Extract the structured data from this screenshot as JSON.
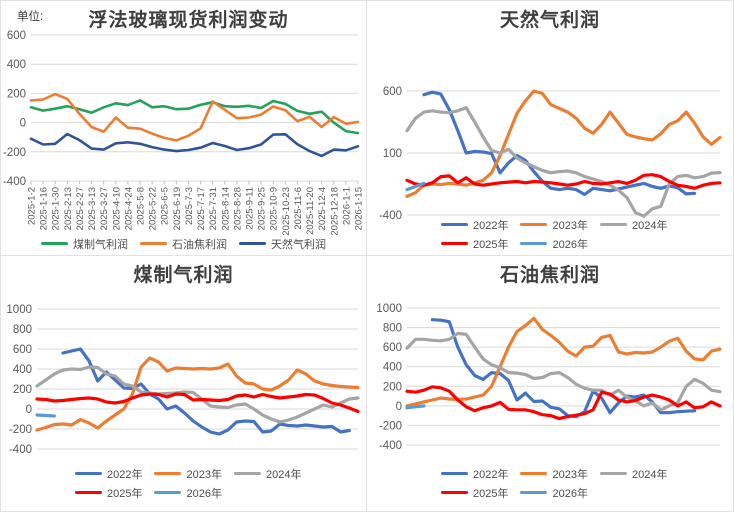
{
  "chart_data": [
    {
      "type": "line",
      "title": "浮法玻璃现货利润变动",
      "unit_label": "单位:",
      "legend_position": "bottom",
      "grid": "horizontal",
      "ylim": [
        -400,
        600
      ],
      "yticks": [
        600,
        400,
        200,
        0,
        -200,
        -400
      ],
      "categories": [
        "2025-1-2",
        "2025-1-16",
        "2025-1-30",
        "2025-2-13",
        "2025-2-27",
        "2025-3-13",
        "2025-3-27",
        "2025-4-10",
        "2025-4-24",
        "2025-5-8",
        "2025-5-22",
        "2025-6-5",
        "2025-6-19",
        "2025-7-3",
        "2025-7-17",
        "2025-7-31",
        "2025-8-14",
        "2025-8-28",
        "2025-9-11",
        "2025-9-25",
        "2025-10-9",
        "2025-10-23",
        "2025-11-6",
        "2025-11-20",
        "2025-12-4",
        "2025-12-18",
        "2026-1-1",
        "2026-1-15"
      ],
      "series": [
        {
          "name": "煤制气利润",
          "color": "#23A359",
          "values": [
            105,
            82,
            95,
            112,
            92,
            68,
            105,
            132,
            120,
            152,
            105,
            112,
            92,
            95,
            122,
            140,
            112,
            108,
            115,
            100,
            148,
            128,
            80,
            60,
            75,
            0,
            -58,
            -72
          ]
        },
        {
          "name": "石油焦利润",
          "color": "#ED7D31",
          "values": [
            152,
            158,
            195,
            162,
            60,
            -30,
            -62,
            35,
            -35,
            -42,
            -75,
            -105,
            -122,
            -90,
            -40,
            145,
            88,
            30,
            35,
            55,
            110,
            85,
            10,
            40,
            -30,
            38,
            -8,
            5
          ]
        },
        {
          "name": "天然气利润",
          "color": "#2F5597",
          "values": [
            -110,
            -150,
            -145,
            -78,
            -120,
            -178,
            -185,
            -142,
            -135,
            -145,
            -168,
            -185,
            -195,
            -188,
            -172,
            -140,
            -160,
            -188,
            -175,
            -150,
            -82,
            -80,
            -148,
            -195,
            -228,
            -185,
            -190,
            -162
          ]
        }
      ]
    },
    {
      "type": "line",
      "title": "天然气利润",
      "legend_position": "bottom",
      "grid": "horizontal",
      "ylim": [
        -400,
        1100
      ],
      "yticks": [
        600,
        100,
        -400
      ],
      "series": [
        {
          "name": "2022年",
          "color": "#4472C4",
          "values": [
            null,
            null,
            570,
            590,
            575,
            450,
            280,
            100,
            112,
            108,
            95,
            -60,
            20,
            80,
            40,
            -50,
            -130,
            -185,
            -195,
            -185,
            -195,
            -235,
            -185,
            -195,
            -205,
            -190,
            -175,
            -160,
            -145,
            -170,
            -185,
            -165,
            -180,
            -230,
            -225,
            null,
            null,
            null
          ]
        },
        {
          "name": "2023年",
          "color": "#ED7D31",
          "values": [
            -250,
            -220,
            -160,
            -150,
            -155,
            -145,
            -150,
            -160,
            -140,
            -120,
            -60,
            80,
            250,
            420,
            520,
            600,
            580,
            490,
            460,
            430,
            380,
            300,
            260,
            330,
            430,
            340,
            250,
            230,
            215,
            205,
            255,
            330,
            360,
            430,
            340,
            230,
            170,
            225
          ]
        },
        {
          "name": "2024年",
          "color": "#A5A5A5",
          "values": [
            280,
            380,
            430,
            440,
            430,
            425,
            440,
            465,
            350,
            230,
            120,
            100,
            130,
            60,
            20,
            -10,
            -40,
            -60,
            -50,
            -45,
            -60,
            -90,
            -110,
            -130,
            -160,
            -200,
            -260,
            -380,
            -410,
            -350,
            -330,
            -150,
            -90,
            -80,
            -100,
            -90,
            -62,
            -58
          ]
        },
        {
          "name": "2025年",
          "color": "#FF0000",
          "values": [
            -120,
            -150,
            -160,
            -140,
            -90,
            -85,
            -140,
            -100,
            -150,
            -160,
            -150,
            -140,
            -135,
            -130,
            -140,
            -130,
            -135,
            -140,
            -150,
            -160,
            -150,
            -130,
            -145,
            -150,
            -140,
            -130,
            -145,
            -120,
            -80,
            -75,
            -90,
            -130,
            -160,
            -170,
            -185,
            -160,
            -145,
            -140
          ]
        },
        {
          "name": "2026年",
          "color": "#5B9BD5",
          "values": [
            -195,
            -170,
            -145,
            null,
            null,
            null,
            null,
            null,
            null,
            null,
            null,
            null,
            null,
            null,
            null,
            null,
            null,
            null,
            null,
            null,
            null,
            null,
            null,
            null,
            null,
            null,
            null,
            null,
            null,
            null,
            null,
            null,
            null,
            null,
            null,
            null,
            null,
            null
          ]
        }
      ]
    },
    {
      "type": "line",
      "title": "煤制气利润",
      "legend_position": "bottom",
      "grid": "horizontal",
      "ylim": [
        -400,
        1000
      ],
      "yticks": [
        1000,
        800,
        600,
        400,
        200,
        0,
        -200,
        -400
      ],
      "series": [
        {
          "name": "2022年",
          "color": "#4472C4",
          "values": [
            null,
            null,
            null,
            560,
            580,
            600,
            480,
            280,
            370,
            290,
            210,
            205,
            250,
            150,
            100,
            0,
            30,
            -40,
            -120,
            -180,
            -230,
            -250,
            -210,
            -130,
            -120,
            -125,
            -230,
            -220,
            -150,
            -165,
            -170,
            -160,
            -170,
            -180,
            -175,
            -230,
            -215,
            null
          ]
        },
        {
          "name": "2023年",
          "color": "#ED7D31",
          "values": [
            -210,
            -185,
            -155,
            -150,
            -160,
            -105,
            -140,
            -190,
            -120,
            -60,
            0,
            150,
            420,
            510,
            470,
            380,
            410,
            405,
            400,
            405,
            400,
            410,
            450,
            330,
            260,
            250,
            200,
            190,
            230,
            290,
            390,
            350,
            280,
            250,
            235,
            225,
            220,
            215
          ]
        },
        {
          "name": "2024年",
          "color": "#A5A5A5",
          "values": [
            230,
            290,
            350,
            390,
            400,
            395,
            420,
            415,
            350,
            330,
            250,
            230,
            170,
            160,
            150,
            155,
            160,
            170,
            165,
            100,
            30,
            20,
            15,
            40,
            50,
            0,
            -60,
            -100,
            -130,
            -110,
            -80,
            -40,
            0,
            40,
            20,
            60,
            100,
            110
          ]
        },
        {
          "name": "2025年",
          "color": "#FF0000",
          "values": [
            100,
            95,
            80,
            85,
            95,
            105,
            110,
            100,
            70,
            60,
            75,
            110,
            140,
            150,
            145,
            120,
            150,
            145,
            90,
            95,
            90,
            85,
            95,
            130,
            140,
            120,
            145,
            125,
            110,
            120,
            130,
            145,
            140,
            105,
            60,
            40,
            10,
            -25
          ]
        },
        {
          "name": "2026年",
          "color": "#5B9BD5",
          "values": [
            -60,
            -65,
            -70,
            null,
            null,
            null,
            null,
            null,
            null,
            null,
            null,
            null,
            null,
            null,
            null,
            null,
            null,
            null,
            null,
            null,
            null,
            null,
            null,
            null,
            null,
            null,
            null,
            null,
            null,
            null,
            null,
            null,
            null,
            null,
            null,
            null,
            null,
            null
          ]
        }
      ]
    },
    {
      "type": "line",
      "title": "石油焦利润",
      "legend_position": "bottom",
      "grid": "horizontal",
      "ylim": [
        -400,
        1000
      ],
      "yticks": [
        1000,
        800,
        600,
        400,
        200,
        0,
        -200,
        -400
      ],
      "series": [
        {
          "name": "2022年",
          "color": "#4472C4",
          "values": [
            null,
            null,
            null,
            880,
            875,
            860,
            600,
            420,
            310,
            270,
            340,
            330,
            260,
            60,
            130,
            45,
            50,
            -15,
            -30,
            -100,
            -110,
            -60,
            150,
            80,
            -70,
            30,
            100,
            90,
            110,
            40,
            -70,
            -70,
            -60,
            -55,
            -50,
            null,
            null,
            null
          ]
        },
        {
          "name": "2023年",
          "color": "#ED7D31",
          "values": [
            0,
            20,
            40,
            60,
            80,
            70,
            65,
            70,
            90,
            110,
            200,
            400,
            600,
            760,
            820,
            895,
            780,
            720,
            650,
            560,
            510,
            600,
            610,
            700,
            720,
            550,
            530,
            545,
            540,
            550,
            600,
            660,
            690,
            560,
            480,
            470,
            560,
            580
          ]
        },
        {
          "name": "2024年",
          "color": "#A5A5A5",
          "values": [
            590,
            680,
            680,
            670,
            665,
            680,
            740,
            730,
            600,
            480,
            420,
            390,
            340,
            335,
            320,
            280,
            290,
            330,
            340,
            290,
            220,
            180,
            160,
            160,
            110,
            160,
            90,
            50,
            0,
            30,
            -40,
            0,
            30,
            200,
            270,
            230,
            160,
            145
          ]
        },
        {
          "name": "2025年",
          "color": "#FF0000",
          "values": [
            150,
            140,
            160,
            195,
            185,
            150,
            60,
            -10,
            -50,
            -20,
            0,
            35,
            -35,
            -40,
            -40,
            -60,
            -90,
            -100,
            -130,
            -110,
            -95,
            -80,
            -40,
            140,
            120,
            60,
            40,
            55,
            90,
            110,
            90,
            60,
            0,
            40,
            -20,
            -10,
            40,
            0
          ]
        },
        {
          "name": "2026年",
          "color": "#5B9BD5",
          "values": [
            -20,
            -10,
            0,
            null,
            null,
            null,
            null,
            null,
            null,
            null,
            null,
            null,
            null,
            null,
            null,
            null,
            null,
            null,
            null,
            null,
            null,
            null,
            null,
            null,
            null,
            null,
            null,
            null,
            null,
            null,
            null,
            null,
            null,
            null,
            null,
            null,
            null,
            null
          ]
        }
      ]
    }
  ]
}
